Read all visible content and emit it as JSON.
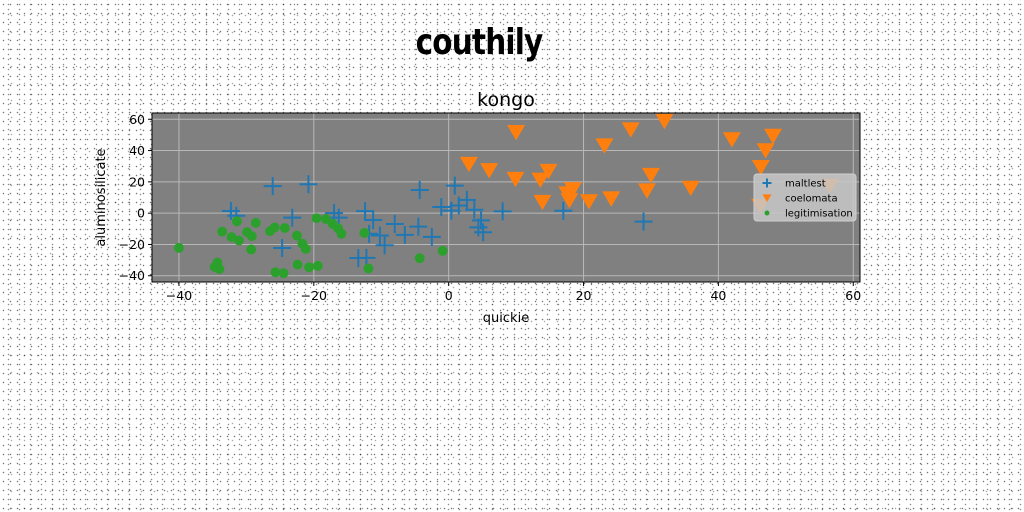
{
  "figure_title": "couthily",
  "chart_data": {
    "type": "scatter",
    "title": "kongo",
    "xlabel": "quickie",
    "ylabel": "aluminosilicate",
    "xlim": [
      -44,
      61
    ],
    "ylim": [
      -44,
      64
    ],
    "xticks": [
      -40,
      -20,
      0,
      20,
      40,
      60
    ],
    "yticks": [
      -40,
      -20,
      0,
      20,
      40,
      60
    ],
    "grid": true,
    "legend_position": "center-right",
    "background": "#808080",
    "series": [
      {
        "name": "maltlest",
        "marker": "plus",
        "color": "#1f77b4",
        "points": [
          [
            -32.3,
            1.4
          ],
          [
            -31.5,
            -1.7
          ],
          [
            -26.1,
            17.3
          ],
          [
            -23.2,
            -2.9
          ],
          [
            -24.7,
            -22.3
          ],
          [
            -20.8,
            18.5
          ],
          [
            -17,
            0
          ],
          [
            -16.3,
            -2.9
          ],
          [
            -12.4,
            1.3
          ],
          [
            -11.2,
            -4.4
          ],
          [
            -13.4,
            -28.7
          ],
          [
            -12.2,
            -28.6
          ],
          [
            -11.8,
            -13.2
          ],
          [
            -10.2,
            -14.3
          ],
          [
            -9.5,
            -20.5
          ],
          [
            -8,
            -6.9
          ],
          [
            -6.5,
            -13.9
          ],
          [
            -4.5,
            -8.6
          ],
          [
            -4.3,
            14.8
          ],
          [
            -2.5,
            -15.2
          ],
          [
            -1.1,
            3.9
          ],
          [
            0.9,
            17.6
          ],
          [
            1.5,
            4.9
          ],
          [
            2.7,
            8.5
          ],
          [
            4.4,
            -9.1
          ],
          [
            4.8,
            -4.6
          ],
          [
            5.1,
            -12.2
          ],
          [
            8,
            1.1
          ],
          [
            17,
            1.5
          ],
          [
            28.9,
            -5.4
          ],
          [
            3.8,
            2.2
          ],
          [
            0.4,
            1.6
          ]
        ]
      },
      {
        "name": "coelomata",
        "marker": "triangle-down",
        "color": "#ff7f0e",
        "points": [
          [
            3,
            31.4
          ],
          [
            6,
            27.4
          ],
          [
            10,
            51.7
          ],
          [
            9.9,
            21.8
          ],
          [
            13.6,
            21.3
          ],
          [
            14.8,
            26.9
          ],
          [
            13.9,
            7.1
          ],
          [
            17.6,
            12.5
          ],
          [
            18.4,
            15.2
          ],
          [
            17.9,
            8.2
          ],
          [
            20.8,
            7.5
          ],
          [
            24.1,
            9.3
          ],
          [
            23.1,
            43.2
          ],
          [
            27,
            53.4
          ],
          [
            30,
            24.3
          ],
          [
            29.4,
            14.4
          ],
          [
            32,
            58.8
          ],
          [
            35.9,
            16.1
          ],
          [
            42,
            47.1
          ],
          [
            46.3,
            29.4
          ],
          [
            47,
            40.1
          ],
          [
            48.1,
            49.3
          ],
          [
            46.2,
            4.6
          ],
          [
            56.5,
            17.4
          ]
        ]
      },
      {
        "name": "legitimisation",
        "marker": "circle",
        "color": "#2ca02c",
        "points": [
          [
            -40,
            -22.2
          ],
          [
            -34.3,
            -31.6
          ],
          [
            -34.7,
            -34.4
          ],
          [
            -34,
            -35.7
          ],
          [
            -33.6,
            -11.8
          ],
          [
            -32.2,
            -15.3
          ],
          [
            -31.1,
            -17.5
          ],
          [
            -31.4,
            -5.2
          ],
          [
            -29.9,
            -12.1
          ],
          [
            -29.2,
            -14.7
          ],
          [
            -29.3,
            -23.2
          ],
          [
            -28.6,
            -6.2
          ],
          [
            -26.5,
            -11.5
          ],
          [
            -25.8,
            -9.1
          ],
          [
            -25.7,
            -37.8
          ],
          [
            -24.3,
            -9.5
          ],
          [
            -24.5,
            -38.4
          ],
          [
            -22.5,
            -14.4
          ],
          [
            -22.4,
            -32.9
          ],
          [
            -21.7,
            -19.5
          ],
          [
            -21.2,
            -22.8
          ],
          [
            -20.7,
            -34.6
          ],
          [
            -19.4,
            -33.7
          ],
          [
            -19.6,
            -3.2
          ],
          [
            -18.2,
            -3.8
          ],
          [
            -17.2,
            -6.9
          ],
          [
            -16.4,
            -9.7
          ],
          [
            -15.9,
            -13.2
          ],
          [
            -12.5,
            -12.6
          ],
          [
            -11.9,
            -35.4
          ],
          [
            -4.3,
            -28.8
          ],
          [
            -0.9,
            -24.1
          ]
        ]
      }
    ]
  }
}
